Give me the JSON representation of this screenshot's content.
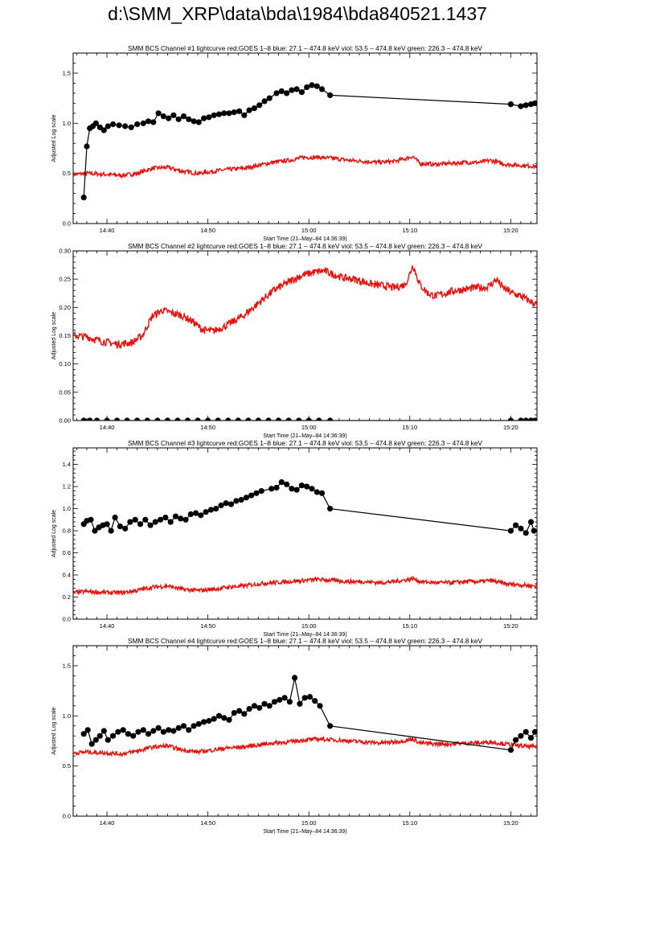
{
  "page_title": "d:\\SMM_XRP\\data\\bda\\1984\\bda840521.1437",
  "colors": {
    "goes": "#e8120c",
    "bcs": "#000000",
    "axis": "#000000"
  },
  "chart_data": [
    {
      "type": "line",
      "title": "SMM BCS Channel #1 lightcurve  red:GOES 1–8  blue: 27.1 – 474.8 keV  viol: 53.5 – 474.8 keV  green: 226.3 – 474.8 keV",
      "xlabel": "Start Time (21–May–84 14:36:39)",
      "ylabel": "Adjusted Log scale",
      "xlim": [
        36.65,
        82.6
      ],
      "ylim": [
        0,
        1.7
      ],
      "x_ticks": [
        "14:40",
        "14:50",
        "15:00",
        "15:10",
        "15:20"
      ],
      "x_tick_values": [
        40,
        50,
        60,
        70,
        80
      ],
      "y_ticks": [
        "0.0",
        "0.5",
        "1.0",
        "1.5"
      ],
      "y_tick_values": [
        0,
        0.5,
        1.0,
        1.5
      ],
      "series": [
        {
          "name": "GOES 1–8",
          "color": "#e8120c",
          "marker": "none",
          "x": [
            36.7,
            38,
            40,
            41.5,
            43,
            44.5,
            46,
            47.5,
            49,
            50.5,
            52,
            53.5,
            55,
            56.5,
            58,
            59.5,
            61,
            62.5,
            64,
            65.5,
            67,
            68.5,
            70,
            70.3,
            71,
            72.5,
            74,
            75.5,
            77,
            78,
            79.5,
            81,
            82.6
          ],
          "y": [
            0.49,
            0.5,
            0.49,
            0.48,
            0.5,
            0.55,
            0.56,
            0.52,
            0.5,
            0.52,
            0.54,
            0.55,
            0.58,
            0.61,
            0.63,
            0.66,
            0.66,
            0.65,
            0.63,
            0.62,
            0.61,
            0.62,
            0.66,
            0.67,
            0.6,
            0.59,
            0.6,
            0.61,
            0.61,
            0.63,
            0.59,
            0.58,
            0.57
          ]
        },
        {
          "name": "BCS",
          "color": "#000000",
          "marker": "circle",
          "x": [
            37.7,
            38,
            38.3,
            38.6,
            38.9,
            39.3,
            39.7,
            40.1,
            40.6,
            41.2,
            41.8,
            42.4,
            43,
            43.6,
            44.1,
            44.6,
            45.1,
            45.6,
            46.1,
            46.6,
            47.1,
            47.6,
            48.1,
            48.6,
            49.1,
            49.6,
            50.1,
            50.6,
            51.1,
            51.6,
            52.1,
            52.6,
            53.1,
            53.6,
            54.1,
            54.6,
            55.1,
            55.6,
            56.1,
            56.8,
            57.3,
            57.8,
            58.3,
            58.8,
            59.3,
            59.8,
            60.3,
            60.8,
            61.3,
            62.1,
            80,
            81,
            81.5,
            82,
            82.4
          ],
          "y": [
            0.26,
            0.77,
            0.95,
            0.97,
            1.0,
            0.96,
            0.93,
            0.97,
            0.99,
            0.98,
            0.97,
            0.96,
            0.99,
            1.0,
            1.02,
            1.01,
            1.1,
            1.07,
            1.05,
            1.08,
            1.04,
            1.07,
            1.04,
            1.02,
            1.01,
            1.05,
            1.06,
            1.08,
            1.09,
            1.1,
            1.1,
            1.11,
            1.12,
            1.08,
            1.13,
            1.15,
            1.18,
            1.22,
            1.25,
            1.3,
            1.32,
            1.3,
            1.33,
            1.34,
            1.31,
            1.36,
            1.38,
            1.37,
            1.34,
            1.28,
            1.19,
            1.17,
            1.18,
            1.19,
            1.2
          ]
        }
      ]
    },
    {
      "type": "line",
      "title": "SMM BCS Channel #2 lightcurve  red:GOES 1–8  blue: 27.1 – 474.8 keV  viol: 53.5 – 474.8 keV  green: 226.3 – 474.8 keV",
      "xlabel": "Start Time (21–May–84 14:36:39)",
      "ylabel": "Adjusted Log scale",
      "xlim": [
        36.65,
        82.6
      ],
      "ylim": [
        0,
        0.3
      ],
      "x_ticks": [
        "14:40",
        "14:50",
        "15:00",
        "15:10",
        "15:20"
      ],
      "x_tick_values": [
        40,
        50,
        60,
        70,
        80
      ],
      "y_ticks": [
        "0.00",
        "0.05",
        "0.10",
        "0.15",
        "0.20",
        "0.25",
        "0.30"
      ],
      "y_tick_values": [
        0,
        0.05,
        0.1,
        0.15,
        0.2,
        0.25,
        0.3
      ],
      "series": [
        {
          "name": "GOES 1–8",
          "color": "#e8120c",
          "marker": "none",
          "x": [
            36.7,
            38,
            39.5,
            41,
            42.5,
            43.5,
            44.5,
            45.5,
            46.5,
            47.5,
            48.5,
            49.5,
            50.5,
            51.5,
            52.5,
            53.5,
            54.5,
            55.5,
            56.5,
            57.5,
            58.5,
            59.5,
            60.5,
            61.5,
            62.5,
            63.5,
            64.5,
            65.5,
            66.5,
            67.5,
            68.5,
            69.5,
            69.8,
            70.3,
            71,
            71.8,
            72.5,
            73.5,
            74.5,
            75.5,
            76.5,
            77.5,
            78,
            78.6,
            79.2,
            80.2,
            81,
            82,
            82.6
          ],
          "y": [
            0.15,
            0.148,
            0.14,
            0.135,
            0.138,
            0.15,
            0.185,
            0.195,
            0.19,
            0.185,
            0.175,
            0.16,
            0.158,
            0.165,
            0.175,
            0.185,
            0.2,
            0.215,
            0.23,
            0.24,
            0.25,
            0.258,
            0.262,
            0.265,
            0.258,
            0.252,
            0.25,
            0.245,
            0.24,
            0.238,
            0.235,
            0.24,
            0.25,
            0.275,
            0.24,
            0.225,
            0.22,
            0.225,
            0.23,
            0.232,
            0.235,
            0.235,
            0.24,
            0.25,
            0.235,
            0.225,
            0.22,
            0.21,
            0.205
          ]
        },
        {
          "name": "BCS",
          "color": "#000000",
          "marker": "circle",
          "x": [
            37.7,
            38.3,
            39,
            40,
            41,
            42,
            43,
            44,
            45,
            46,
            47,
            48,
            49,
            50,
            51,
            52,
            53,
            54,
            55,
            56,
            57,
            58,
            59,
            60,
            61,
            62.1,
            80,
            81,
            81.5,
            82,
            82.4
          ],
          "y": [
            0,
            0,
            0,
            0,
            0,
            0,
            0,
            0,
            0,
            0,
            0,
            0,
            0,
            0,
            0,
            0,
            0,
            0,
            0,
            0,
            0,
            0,
            0,
            0,
            0,
            0,
            0,
            0,
            0,
            0,
            0
          ]
        }
      ]
    },
    {
      "type": "line",
      "title": "SMM BCS Channel #3 lightcurve  red:GOES 1–8  blue: 27.1 – 474.8 keV  viol: 53.5 – 474.8 keV  green: 226.3 – 474.8 keV",
      "xlabel": "Start Time (21–May–84 14:36:39)",
      "ylabel": "Adjusted Log scale",
      "xlim": [
        36.65,
        82.6
      ],
      "ylim": [
        0,
        1.55
      ],
      "x_ticks": [
        "14:40",
        "14:50",
        "15:00",
        "15:10",
        "15:20"
      ],
      "x_tick_values": [
        40,
        50,
        60,
        70,
        80
      ],
      "y_ticks": [
        "0.0",
        "0.2",
        "0.4",
        "0.6",
        "0.8",
        "1.0",
        "1.2",
        "1.4"
      ],
      "y_tick_values": [
        0,
        0.2,
        0.4,
        0.6,
        0.8,
        1.0,
        1.2,
        1.4
      ],
      "series": [
        {
          "name": "GOES 1–8",
          "color": "#e8120c",
          "marker": "none",
          "x": [
            36.7,
            38,
            40,
            41.5,
            43,
            44.5,
            46,
            47.5,
            49,
            50.5,
            52,
            53.5,
            55,
            56.5,
            58,
            59.5,
            61,
            62.5,
            64,
            65.5,
            67,
            68.5,
            70,
            70.3,
            71,
            72.5,
            74,
            75.5,
            77,
            78,
            79.5,
            81,
            82.6
          ],
          "y": [
            0.24,
            0.25,
            0.24,
            0.24,
            0.26,
            0.29,
            0.3,
            0.27,
            0.26,
            0.27,
            0.29,
            0.3,
            0.32,
            0.33,
            0.34,
            0.35,
            0.36,
            0.35,
            0.34,
            0.34,
            0.33,
            0.34,
            0.36,
            0.37,
            0.34,
            0.33,
            0.33,
            0.34,
            0.34,
            0.35,
            0.32,
            0.31,
            0.3
          ]
        },
        {
          "name": "BCS",
          "color": "#000000",
          "marker": "circle",
          "x": [
            37.7,
            38,
            38.4,
            38.8,
            39.2,
            39.6,
            40,
            40.4,
            40.8,
            41.3,
            41.8,
            42.3,
            42.8,
            43.3,
            43.8,
            44.3,
            44.8,
            45.3,
            45.8,
            46.3,
            46.8,
            47.3,
            47.8,
            48.3,
            48.8,
            49.3,
            49.8,
            50.3,
            50.8,
            51.3,
            51.8,
            52.3,
            52.8,
            53.3,
            53.8,
            54.3,
            54.8,
            55.3,
            56.3,
            56.8,
            57.3,
            57.8,
            58.3,
            58.8,
            59.3,
            59.8,
            60.3,
            60.8,
            61.3,
            62.1,
            80,
            80.5,
            81,
            81.5,
            82,
            82.3
          ],
          "y": [
            0.86,
            0.89,
            0.9,
            0.8,
            0.83,
            0.85,
            0.86,
            0.8,
            0.92,
            0.84,
            0.82,
            0.88,
            0.9,
            0.86,
            0.9,
            0.85,
            0.88,
            0.9,
            0.92,
            0.88,
            0.93,
            0.91,
            0.9,
            0.95,
            0.96,
            0.94,
            0.97,
            0.99,
            1.0,
            1.03,
            1.05,
            1.04,
            1.07,
            1.08,
            1.1,
            1.12,
            1.14,
            1.16,
            1.18,
            1.19,
            1.24,
            1.22,
            1.18,
            1.17,
            1.21,
            1.2,
            1.18,
            1.15,
            1.14,
            1.0,
            0.8,
            0.85,
            0.82,
            0.78,
            0.88,
            0.8
          ]
        }
      ]
    },
    {
      "type": "line",
      "title": "SMM BCS Channel #4 lightcurve  red:GOES 1–8  blue: 27.1 – 474.8 keV  viol: 53.5 – 474.8 keV  green: 226.3 – 474.8 keV",
      "xlabel": "Start Time (21–May–84 14:36:39)",
      "ylabel": "Adjusted Log scale",
      "xlim": [
        36.65,
        82.6
      ],
      "ylim": [
        0,
        1.7
      ],
      "x_ticks": [
        "14:40",
        "14:50",
        "15:00",
        "15:10",
        "15:20"
      ],
      "x_tick_values": [
        40,
        50,
        60,
        70,
        80
      ],
      "y_ticks": [
        "0.0",
        "0.5",
        "1.0",
        "1.5"
      ],
      "y_tick_values": [
        0,
        0.5,
        1.0,
        1.5
      ],
      "series": [
        {
          "name": "GOES 1–8",
          "color": "#e8120c",
          "marker": "none",
          "x": [
            36.7,
            38,
            40,
            41.5,
            43,
            44.5,
            46,
            47.5,
            49,
            50.5,
            52,
            53.5,
            55,
            56.5,
            58,
            59.5,
            61,
            62.5,
            64,
            65.5,
            67,
            68.5,
            70,
            70.3,
            71,
            72.5,
            74,
            75.5,
            77,
            78,
            79.5,
            81,
            82.6
          ],
          "y": [
            0.63,
            0.64,
            0.63,
            0.62,
            0.65,
            0.69,
            0.7,
            0.66,
            0.64,
            0.66,
            0.68,
            0.69,
            0.71,
            0.73,
            0.74,
            0.76,
            0.77,
            0.76,
            0.75,
            0.74,
            0.73,
            0.74,
            0.76,
            0.77,
            0.73,
            0.72,
            0.72,
            0.73,
            0.73,
            0.74,
            0.72,
            0.7,
            0.69
          ]
        },
        {
          "name": "BCS",
          "color": "#000000",
          "marker": "circle",
          "x": [
            37.7,
            38.1,
            38.5,
            38.9,
            39.3,
            39.7,
            40.1,
            40.6,
            41.1,
            41.6,
            42.1,
            42.6,
            43.1,
            43.6,
            44.1,
            44.6,
            45.1,
            45.6,
            46.1,
            46.6,
            47.1,
            47.6,
            48.1,
            48.6,
            49.1,
            49.6,
            50.1,
            50.6,
            51.1,
            51.6,
            52.1,
            52.6,
            53.1,
            53.6,
            54.1,
            54.6,
            55.1,
            55.6,
            56.1,
            56.6,
            57.1,
            57.6,
            58.1,
            58.6,
            59.1,
            59.6,
            60.1,
            60.6,
            61.1,
            62.1,
            80,
            80.5,
            81,
            81.5,
            82,
            82.4
          ],
          "y": [
            0.82,
            0.86,
            0.72,
            0.76,
            0.8,
            0.85,
            0.76,
            0.8,
            0.84,
            0.86,
            0.82,
            0.8,
            0.84,
            0.86,
            0.82,
            0.85,
            0.88,
            0.84,
            0.86,
            0.85,
            0.88,
            0.9,
            0.86,
            0.9,
            0.92,
            0.94,
            0.95,
            0.97,
            1.0,
            0.98,
            0.96,
            1.03,
            1.05,
            1.02,
            1.07,
            1.1,
            1.08,
            1.12,
            1.1,
            1.14,
            1.16,
            1.18,
            1.14,
            1.38,
            1.12,
            1.18,
            1.19,
            1.15,
            1.1,
            0.9,
            0.66,
            0.76,
            0.8,
            0.84,
            0.78,
            0.84
          ]
        }
      ]
    }
  ]
}
